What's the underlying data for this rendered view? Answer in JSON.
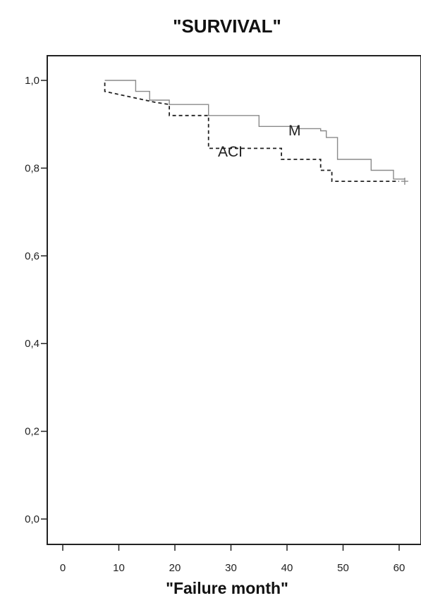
{
  "chart_data": {
    "type": "line",
    "subtype": "step (Kaplan-Meier survival)",
    "title": "\"SURVIVAL\"",
    "xlabel": "\"Failure month\"",
    "ylabel": "",
    "xlim": [
      -2,
      63
    ],
    "ylim": [
      -0.05,
      1.07
    ],
    "xticks": [
      0,
      10,
      20,
      30,
      40,
      50,
      60
    ],
    "yticks": [
      0.0,
      0.2,
      0.4,
      0.6,
      0.8,
      1.0
    ],
    "ytick_labels": [
      "0,0",
      "0,2",
      "0,4",
      "0,6",
      "0,8",
      "1,0"
    ],
    "xtick_labels": [
      "0",
      "10",
      "20",
      "30",
      "40",
      "50",
      "60"
    ],
    "grid": false,
    "legend": "none (series labelled inline)",
    "series": [
      {
        "name": "M",
        "style": "solid",
        "color": "#8a8a8a",
        "x": [
          7.5,
          13,
          13,
          15.5,
          15.5,
          19,
          19,
          26,
          26,
          35,
          35,
          42,
          42,
          46,
          46,
          47,
          47,
          49,
          49,
          55,
          55,
          59,
          59,
          61
        ],
        "y": [
          1.0,
          1.0,
          0.975,
          0.975,
          0.955,
          0.955,
          0.945,
          0.945,
          0.92,
          0.92,
          0.895,
          0.895,
          0.89,
          0.89,
          0.885,
          0.885,
          0.87,
          0.87,
          0.82,
          0.82,
          0.795,
          0.795,
          0.775,
          0.775
        ],
        "censored": [
          [
            61,
            0.77
          ]
        ]
      },
      {
        "name": "ACI",
        "style": "dashed",
        "color": "#222222",
        "x": [
          7.5,
          7.5,
          16.5,
          19,
          19,
          26,
          26,
          39,
          39,
          46,
          46,
          48,
          48,
          60
        ],
        "y": [
          0.995,
          0.975,
          0.95,
          0.945,
          0.92,
          0.92,
          0.845,
          0.845,
          0.82,
          0.82,
          0.795,
          0.795,
          0.77,
          0.77
        ]
      }
    ]
  }
}
